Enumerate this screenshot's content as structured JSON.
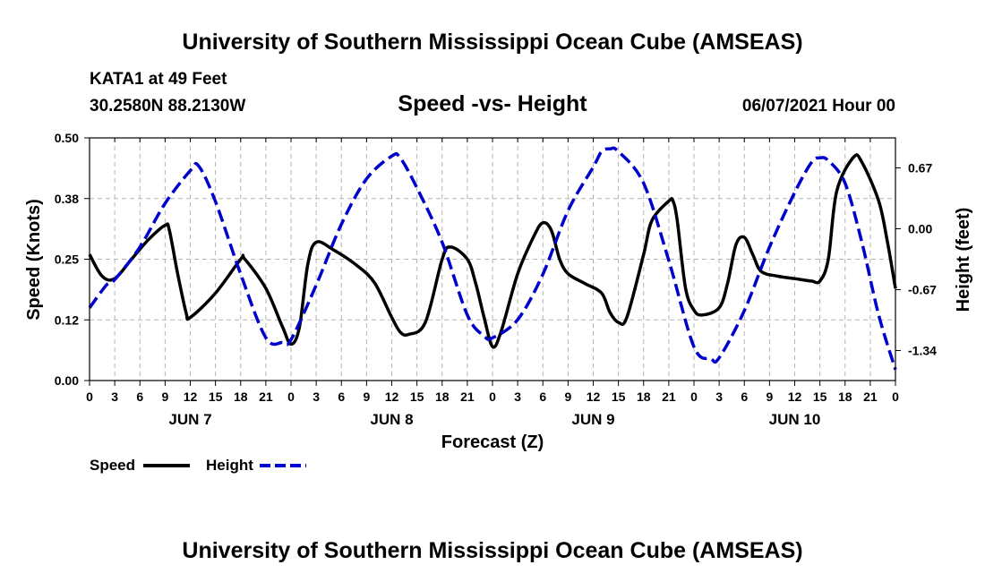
{
  "header": {
    "title_top": "University of Southern Mississippi Ocean Cube (AMSEAS)",
    "station": "KATA1 at 49 Feet",
    "coords": "30.2580N  88.2130W",
    "plot_title": "Speed -vs- Height",
    "datetime": "06/07/2021 Hour 00",
    "title_bottom": "University of Southern Mississippi Ocean Cube (AMSEAS)"
  },
  "chart_data": {
    "type": "line",
    "title": "Speed -vs- Height",
    "xlabel": "Forecast (Z)",
    "ylabel_left": "Speed (Knots)",
    "ylabel_right": "Height (feet)",
    "x_range_hours": [
      0,
      96
    ],
    "ylim_left": [
      0,
      0.5
    ],
    "ylim_right": [
      -1.67,
      1.0
    ],
    "left_ticks": [
      "0.00",
      "0.12",
      "0.25",
      "0.38",
      "0.50"
    ],
    "left_tick_values": [
      0,
      0.125,
      0.25,
      0.375,
      0.5
    ],
    "right_ticks": [
      "0.67",
      "0.00",
      "-0.67",
      "-1.34"
    ],
    "right_tick_values": [
      0.67,
      0.0,
      -0.67,
      -1.34
    ],
    "x_tick_labels": [
      "0",
      "3",
      "6",
      "9",
      "12",
      "15",
      "18",
      "21",
      "0",
      "3",
      "6",
      "9",
      "12",
      "15",
      "18",
      "21",
      "0",
      "3",
      "6",
      "9",
      "12",
      "15",
      "18",
      "21",
      "0",
      "3",
      "6",
      "9",
      "12",
      "15",
      "18",
      "21",
      "0"
    ],
    "day_labels": [
      {
        "label": "JUN 7",
        "hour": 12
      },
      {
        "label": "JUN 8",
        "hour": 36
      },
      {
        "label": "JUN 9",
        "hour": 60
      },
      {
        "label": "JUN 10",
        "hour": 84
      }
    ],
    "grid": true,
    "series": [
      {
        "name": "Speed",
        "axis": "left",
        "color": "#000000",
        "dash": "solid",
        "points": [
          [
            0,
            0.26
          ],
          [
            1.5,
            0.215
          ],
          [
            3,
            0.21
          ],
          [
            5,
            0.25
          ],
          [
            7,
            0.29
          ],
          [
            9,
            0.32
          ],
          [
            9.5,
            0.31
          ],
          [
            10.5,
            0.22
          ],
          [
            11.5,
            0.14
          ],
          [
            12,
            0.13
          ],
          [
            15,
            0.18
          ],
          [
            18,
            0.25
          ],
          [
            18.5,
            0.25
          ],
          [
            21,
            0.19
          ],
          [
            23,
            0.11
          ],
          [
            24,
            0.075
          ],
          [
            25,
            0.11
          ],
          [
            26,
            0.24
          ],
          [
            27,
            0.285
          ],
          [
            29,
            0.27
          ],
          [
            32,
            0.235
          ],
          [
            34,
            0.2
          ],
          [
            36,
            0.13
          ],
          [
            37,
            0.1
          ],
          [
            38,
            0.095
          ],
          [
            40,
            0.12
          ],
          [
            42,
            0.25
          ],
          [
            43,
            0.275
          ],
          [
            45,
            0.25
          ],
          [
            46,
            0.2
          ],
          [
            47,
            0.13
          ],
          [
            48,
            0.07
          ],
          [
            49,
            0.1
          ],
          [
            51,
            0.22
          ],
          [
            53,
            0.3
          ],
          [
            54,
            0.325
          ],
          [
            55,
            0.31
          ],
          [
            56,
            0.25
          ],
          [
            57,
            0.22
          ],
          [
            59,
            0.2
          ],
          [
            61,
            0.18
          ],
          [
            62,
            0.14
          ],
          [
            63,
            0.12
          ],
          [
            64,
            0.13
          ],
          [
            66,
            0.26
          ],
          [
            67,
            0.33
          ],
          [
            69,
            0.37
          ],
          [
            69.5,
            0.37
          ],
          [
            70,
            0.33
          ],
          [
            71,
            0.19
          ],
          [
            72,
            0.145
          ],
          [
            73,
            0.135
          ],
          [
            75,
            0.15
          ],
          [
            76,
            0.2
          ],
          [
            77,
            0.28
          ],
          [
            78,
            0.295
          ],
          [
            79,
            0.26
          ],
          [
            80,
            0.225
          ],
          [
            82,
            0.215
          ],
          [
            84,
            0.21
          ],
          [
            86,
            0.205
          ],
          [
            87,
            0.205
          ],
          [
            88,
            0.25
          ],
          [
            89,
            0.39
          ],
          [
            91,
            0.46
          ],
          [
            92,
            0.45
          ],
          [
            94,
            0.37
          ],
          [
            95,
            0.29
          ],
          [
            96,
            0.19
          ]
        ]
      },
      {
        "name": "Height",
        "axis": "right",
        "color": "#0000cc",
        "dash": "dashed",
        "points": [
          [
            0,
            -0.87
          ],
          [
            2,
            -0.62
          ],
          [
            3,
            -0.56
          ],
          [
            6,
            -0.2
          ],
          [
            9,
            0.28
          ],
          [
            12,
            0.64
          ],
          [
            13,
            0.69
          ],
          [
            15,
            0.3
          ],
          [
            18,
            -0.5
          ],
          [
            21,
            -1.2
          ],
          [
            23,
            -1.25
          ],
          [
            24,
            -1.22
          ],
          [
            27,
            -0.62
          ],
          [
            30,
            0.05
          ],
          [
            33,
            0.55
          ],
          [
            36,
            0.8
          ],
          [
            37,
            0.78
          ],
          [
            39,
            0.45
          ],
          [
            42,
            -0.15
          ],
          [
            45,
            -0.95
          ],
          [
            47,
            -1.18
          ],
          [
            48,
            -1.2
          ],
          [
            51,
            -1.0
          ],
          [
            54,
            -0.5
          ],
          [
            57,
            0.2
          ],
          [
            60,
            0.68
          ],
          [
            61,
            0.85
          ],
          [
            62,
            0.88
          ],
          [
            63,
            0.85
          ],
          [
            66,
            0.5
          ],
          [
            69,
            -0.35
          ],
          [
            72,
            -1.3
          ],
          [
            74,
            -1.43
          ],
          [
            75,
            -1.42
          ],
          [
            78,
            -0.9
          ],
          [
            81,
            -0.2
          ],
          [
            84,
            0.4
          ],
          [
            86,
            0.73
          ],
          [
            87,
            0.78
          ],
          [
            88,
            0.75
          ],
          [
            90,
            0.5
          ],
          [
            92,
            -0.15
          ],
          [
            94,
            -0.95
          ],
          [
            96,
            -1.55
          ]
        ]
      }
    ]
  },
  "legend": {
    "speed_label": "Speed",
    "height_label": "Height"
  }
}
